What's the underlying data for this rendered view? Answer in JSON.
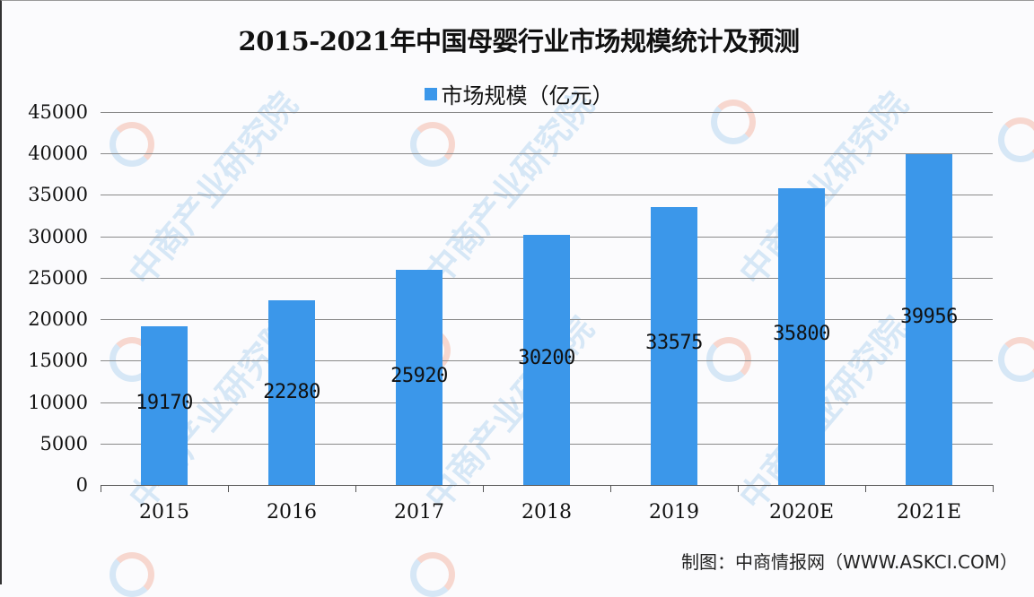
{
  "chart_data": {
    "type": "bar",
    "title": "2015-2021年中国母婴行业市场规模统计及预测",
    "xlabel": "",
    "ylabel": "",
    "ylim": [
      0,
      45000
    ],
    "yticks": [
      0,
      5000,
      10000,
      15000,
      20000,
      25000,
      30000,
      35000,
      40000,
      45000
    ],
    "grid": true,
    "legend_position": "top",
    "categories": [
      "2015",
      "2016",
      "2017",
      "2018",
      "2019",
      "2020E",
      "2021E"
    ],
    "series": [
      {
        "name": "市场规模（亿元）",
        "color": "#3b97ea",
        "values": [
          19170,
          22280,
          25920,
          30200,
          33575,
          35800,
          39956
        ]
      }
    ],
    "source": "制图：中商情报网（WWW.ASKCI.COM）",
    "watermark": "中商产业研究院"
  },
  "title": "2015-2021年中国母婴行业市场规模统计及预测",
  "legend": {
    "label": "市场规模（亿元）",
    "color": "#3b97ea"
  },
  "yaxis": {
    "ticks": [
      "0",
      "5000",
      "10000",
      "15000",
      "20000",
      "25000",
      "30000",
      "35000",
      "40000",
      "45000"
    ]
  },
  "xaxis": {
    "labels": [
      "2015",
      "2016",
      "2017",
      "2018",
      "2019",
      "2020E",
      "2021E"
    ]
  },
  "bars": {
    "labels": [
      "19170",
      "22280",
      "25920",
      "30200",
      "33575",
      "35800",
      "39956"
    ]
  },
  "source": "制图：中商情报网（WWW.ASKCI.COM）",
  "watermark": {
    "text": "中商产业研究院"
  }
}
